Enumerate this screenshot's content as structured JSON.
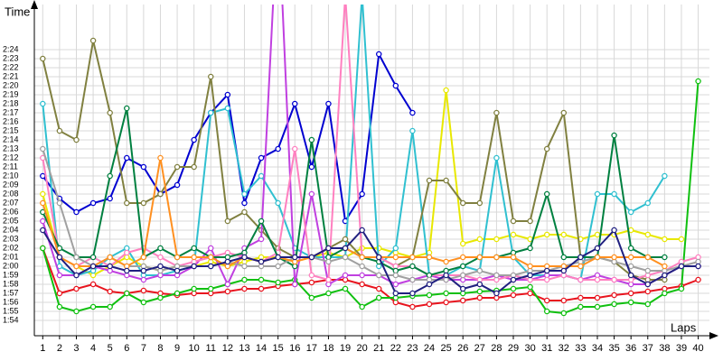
{
  "chart_data": {
    "type": "line",
    "x_label": "Laps",
    "y_label": "Time",
    "x": [
      1,
      2,
      3,
      4,
      5,
      6,
      7,
      8,
      9,
      10,
      11,
      12,
      13,
      14,
      15,
      16,
      17,
      18,
      19,
      20,
      21,
      22,
      23,
      24,
      25,
      26,
      27,
      28,
      29,
      30,
      31,
      32,
      33,
      34,
      35,
      36,
      37,
      38,
      39,
      40
    ],
    "xlim": [
      0.5,
      40.4
    ],
    "xticks": [
      1,
      2,
      3,
      4,
      5,
      6,
      7,
      8,
      9,
      10,
      11,
      12,
      13,
      14,
      15,
      16,
      17,
      18,
      19,
      20,
      21,
      22,
      23,
      24,
      25,
      26,
      27,
      28,
      29,
      30,
      31,
      32,
      33,
      34,
      35,
      36,
      37,
      38,
      39,
      40
    ],
    "ylim": [
      112.3,
      149
    ],
    "yticks": [
      {
        "value": 114,
        "label": "1:54"
      },
      {
        "value": 115,
        "label": "1:55"
      },
      {
        "value": 116,
        "label": "1:56"
      },
      {
        "value": 117,
        "label": "1:57"
      },
      {
        "value": 118,
        "label": "1:58"
      },
      {
        "value": 119,
        "label": "1:59"
      },
      {
        "value": 120,
        "label": "2:00"
      },
      {
        "value": 121,
        "label": "2:01"
      },
      {
        "value": 122,
        "label": "2:02"
      },
      {
        "value": 123,
        "label": "2:03"
      },
      {
        "value": 124,
        "label": "2:04"
      },
      {
        "value": 125,
        "label": "2:05"
      },
      {
        "value": 126,
        "label": "2:06"
      },
      {
        "value": 127,
        "label": "2:07"
      },
      {
        "value": 128,
        "label": "2:08"
      },
      {
        "value": 129,
        "label": "2:09"
      },
      {
        "value": 130,
        "label": "2:10"
      },
      {
        "value": 131,
        "label": "2:11"
      },
      {
        "value": 132,
        "label": "2:12"
      },
      {
        "value": 133,
        "label": "2:13"
      },
      {
        "value": 134,
        "label": "2:14"
      },
      {
        "value": 135,
        "label": "2:15"
      },
      {
        "value": 136,
        "label": "2:16"
      },
      {
        "value": 137,
        "label": "2:17"
      },
      {
        "value": 138,
        "label": "2:18"
      },
      {
        "value": 139,
        "label": "2:19"
      },
      {
        "value": 140,
        "label": "2:20"
      },
      {
        "value": 141,
        "label": "2:21"
      },
      {
        "value": 142,
        "label": "2:22"
      },
      {
        "value": 143,
        "label": "2:23"
      },
      {
        "value": 144,
        "label": "2:24"
      }
    ],
    "grid": true,
    "series": [
      {
        "color": "#e8141e",
        "values": [
          122,
          117,
          117.5,
          118,
          117.2,
          117,
          117.3,
          117,
          116.8,
          117,
          117,
          117.2,
          117.5,
          117.5,
          117.8,
          118,
          118.2,
          118.5,
          118.5,
          118,
          117.5,
          116,
          115.5,
          115.8,
          116,
          116.2,
          116.5,
          116.5,
          116.8,
          117,
          116.2,
          116.2,
          116.5,
          116.5,
          116.8,
          117,
          117.2,
          117.5,
          117.8,
          118.5
        ]
      },
      {
        "color": "#10c010",
        "values": [
          122,
          115.5,
          115,
          115.5,
          115.5,
          117,
          116,
          116.5,
          117,
          117.5,
          117.5,
          118,
          118.5,
          118.5,
          118.2,
          118.5,
          116.5,
          117,
          117.5,
          115.5,
          116.5,
          116.5,
          116.7,
          116.8,
          117,
          117,
          117.2,
          117.3,
          117.5,
          117.7,
          115,
          114.8,
          115.5,
          115.5,
          115.8,
          116,
          115.8,
          117,
          117.5,
          140.5
        ]
      },
      {
        "color": "#0000d0",
        "values": [
          130,
          127.5,
          126,
          127,
          127.5,
          132,
          131,
          128,
          129,
          134,
          137,
          139,
          127,
          132,
          133,
          138,
          131,
          138,
          125,
          128,
          143.5,
          140,
          137,
          null,
          null,
          null,
          null,
          null,
          null,
          null,
          null,
          null,
          null,
          null,
          null,
          null,
          null,
          null,
          null,
          null
        ]
      },
      {
        "color": "#e8e800",
        "values": [
          128,
          121,
          120,
          119,
          120,
          121,
          120,
          119.5,
          120,
          120,
          120.5,
          120,
          120.5,
          121,
          121,
          120.5,
          121,
          121.5,
          121,
          122,
          122,
          121.5,
          121,
          121.5,
          139.5,
          122.5,
          123,
          123,
          123.5,
          123,
          123.5,
          123.5,
          123,
          123.5,
          123.5,
          124,
          123.5,
          123,
          123,
          null
        ]
      },
      {
        "color": "#30c0d0",
        "values": [
          138,
          120,
          119,
          119.5,
          121,
          122,
          119,
          119,
          119.5,
          120,
          137,
          137.5,
          128,
          130,
          127,
          122,
          121,
          121,
          121,
          150,
          120,
          122,
          135,
          119,
          119,
          120,
          119.5,
          132,
          121,
          119,
          119,
          119,
          118.5,
          128,
          128,
          126,
          127,
          130,
          null,
          null
        ]
      },
      {
        "color": "#808040",
        "values": [
          143,
          135,
          134,
          145,
          137,
          127,
          127,
          128,
          131,
          131,
          141,
          125,
          126,
          124,
          122,
          121,
          121,
          122,
          123,
          121,
          121,
          120,
          121,
          129.5,
          129.5,
          127,
          127,
          137,
          125,
          125,
          133,
          137,
          121,
          121,
          120.5,
          119,
          118.5,
          118.5,
          null,
          null
        ]
      },
      {
        "color": "#c040e0",
        "values": [
          125,
          119,
          119,
          120,
          119.5,
          119,
          118.5,
          119,
          119,
          120,
          122,
          118,
          122,
          123,
          160,
          118,
          128,
          118,
          119,
          119,
          119,
          118,
          118.5,
          119,
          118.5,
          118.5,
          118.5,
          119,
          118.5,
          118.5,
          119,
          119,
          118.5,
          119,
          118.5,
          118,
          118,
          119,
          120,
          120
        ]
      },
      {
        "color": "#ff80c0",
        "values": [
          132,
          121,
          120,
          121,
          120,
          121.5,
          122,
          121,
          120,
          120.5,
          121,
          121.5,
          121,
          120.5,
          121.5,
          133,
          119,
          118.5,
          150,
          121,
          121,
          120,
          120,
          119,
          119,
          119,
          118.5,
          118.5,
          119,
          118.5,
          118.5,
          119,
          118.5,
          118.5,
          118.5,
          118.5,
          119,
          119.5,
          120.5,
          121
        ]
      },
      {
        "color": "#008040",
        "values": [
          126,
          122,
          121,
          121,
          130,
          137.5,
          121,
          122,
          121,
          122,
          121,
          121,
          121.5,
          125,
          121,
          120,
          134,
          121,
          122,
          121,
          120.5,
          119.5,
          120,
          119,
          119.5,
          120,
          121,
          121,
          121.5,
          122,
          128,
          121,
          121,
          121,
          134.5,
          122,
          121,
          121,
          null,
          null
        ]
      },
      {
        "color": "#a0a0a0",
        "values": [
          133,
          127,
          121,
          120,
          121,
          120,
          120,
          119.5,
          120,
          120,
          120,
          120.5,
          120,
          120,
          120,
          121,
          121,
          120.5,
          121,
          120,
          119,
          119,
          118.5,
          118.5,
          118.5,
          119,
          119.5,
          119,
          119,
          119.5,
          119.5,
          120,
          120.5,
          121,
          120.5,
          120,
          119.5,
          119.5,
          120,
          120.5
        ]
      },
      {
        "color": "#ff9020",
        "values": [
          127,
          121,
          120,
          120,
          121,
          120,
          121,
          132,
          121,
          121,
          121,
          120,
          121,
          120.5,
          121,
          120.5,
          121,
          122,
          122,
          121,
          121,
          121,
          121,
          121,
          120.5,
          121,
          121,
          121,
          121,
          120,
          120,
          120,
          120,
          121,
          121,
          121,
          121,
          120,
          null,
          null
        ]
      },
      {
        "color": "#202080",
        "values": [
          124,
          121,
          119,
          120,
          120,
          119.5,
          119.5,
          120,
          119.5,
          120,
          120,
          120.5,
          121,
          120.5,
          121,
          121,
          121,
          122,
          122,
          124,
          121,
          117,
          117,
          118,
          119,
          117.5,
          118,
          117,
          118.5,
          119,
          119.5,
          119.5,
          121,
          122,
          124,
          119,
          118,
          119,
          120,
          120
        ]
      }
    ]
  }
}
